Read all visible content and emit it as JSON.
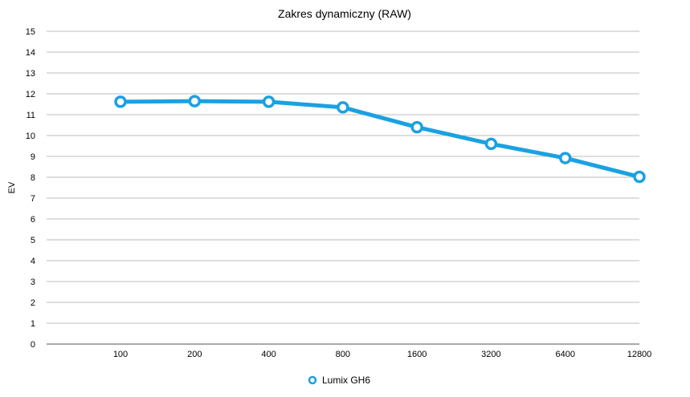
{
  "chart_data": {
    "type": "line",
    "title": "Zakres dynamiczny (RAW)",
    "xlabel": "",
    "ylabel": "EV",
    "categories": [
      "100",
      "200",
      "400",
      "800",
      "1600",
      "3200",
      "6400",
      "12800"
    ],
    "series": [
      {
        "name": "Lumix GH6",
        "color": "#1ba1e2",
        "values": [
          11.62,
          11.65,
          11.62,
          11.35,
          10.4,
          9.6,
          8.92,
          8.02
        ]
      }
    ],
    "ylim": [
      0,
      15
    ],
    "yticks": [
      "0",
      "1",
      "2",
      "3",
      "4",
      "5",
      "6",
      "7",
      "8",
      "9",
      "10",
      "11",
      "12",
      "13",
      "14",
      "15"
    ],
    "grid": true,
    "legend_position": "bottom-center",
    "marker": "hollow-circle"
  }
}
